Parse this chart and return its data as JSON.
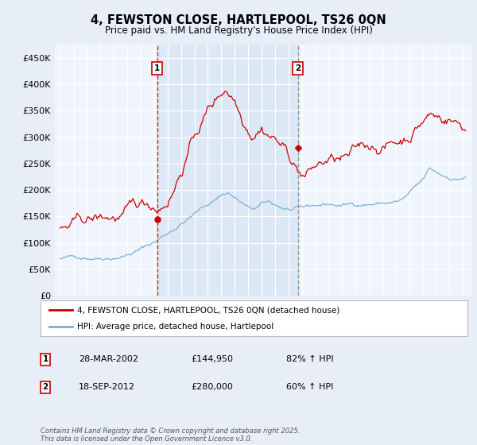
{
  "title": "4, FEWSTON CLOSE, HARTLEPOOL, TS26 0QN",
  "subtitle": "Price paid vs. HM Land Registry's House Price Index (HPI)",
  "red_label": "4, FEWSTON CLOSE, HARTLEPOOL, TS26 0QN (detached house)",
  "blue_label": "HPI: Average price, detached house, Hartlepool",
  "sale1_date": "28-MAR-2002",
  "sale1_price": "£144,950",
  "sale1_hpi": "82% ↑ HPI",
  "sale2_date": "18-SEP-2012",
  "sale2_price": "£280,000",
  "sale2_hpi": "60% ↑ HPI",
  "sale1_year": 2002.23,
  "sale2_year": 2012.72,
  "sale1_value": 144950,
  "sale2_value": 280000,
  "ylim": [
    0,
    475000
  ],
  "yticks": [
    0,
    50000,
    100000,
    150000,
    200000,
    250000,
    300000,
    350000,
    400000,
    450000
  ],
  "footer": "Contains HM Land Registry data © Crown copyright and database right 2025.\nThis data is licensed under the Open Government Licence v3.0.",
  "background_color": "#e8eef8",
  "plot_bg": "#f0f4fc",
  "shade_color": "#dce8f5",
  "grid_color": "#ffffff",
  "red_color": "#cc0000",
  "blue_color": "#7ab0d8"
}
